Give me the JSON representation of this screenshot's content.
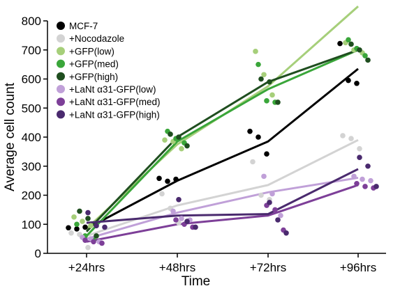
{
  "chart_data": {
    "type": "scatter",
    "title": "",
    "xlabel": "Time",
    "ylabel": "Average cell count",
    "categories": [
      "+24hrs",
      "+48hrs",
      "+72hrs",
      "+96hrs"
    ],
    "ylim": [
      0,
      800
    ],
    "yticks": [
      0,
      100,
      200,
      300,
      400,
      500,
      600,
      700,
      800
    ],
    "grid": false,
    "legend_position": "top-left",
    "series": [
      {
        "name": "MCF-7",
        "color": "#000000",
        "line": [
          85,
          250,
          385,
          635
        ],
        "points": [
          [
            1,
            88
          ],
          [
            1,
            84
          ],
          [
            1,
            90
          ],
          [
            2,
            258
          ],
          [
            2,
            248
          ],
          [
            2,
            255
          ],
          [
            3,
            420
          ],
          [
            3,
            400
          ],
          [
            3,
            342
          ],
          [
            4,
            722
          ],
          [
            4,
            595
          ],
          [
            4,
            585
          ]
        ]
      },
      {
        "name": "+Nocodazole",
        "color": "#d3d3d3",
        "line": [
          60,
          165,
          235,
          390
        ],
        "points": [
          [
            1,
            70
          ],
          [
            1,
            65
          ],
          [
            1,
            20
          ],
          [
            2,
            205
          ],
          [
            2,
            155
          ],
          [
            2,
            105
          ],
          [
            3,
            315
          ],
          [
            3,
            200
          ],
          [
            3,
            185
          ],
          [
            4,
            405
          ],
          [
            4,
            395
          ],
          [
            4,
            360
          ]
        ]
      },
      {
        "name": "+GFP(low)",
        "color": "#a6cf7a",
        "line": [
          85,
          375,
          575,
          850
        ],
        "points": [
          [
            1,
            125
          ],
          [
            1,
            110
          ],
          [
            1,
            95
          ],
          [
            2,
            390
          ],
          [
            2,
            385
          ],
          [
            2,
            360
          ],
          [
            3,
            695
          ],
          [
            3,
            615
          ],
          [
            3,
            545
          ],
          [
            4,
            725
          ],
          [
            4,
            700
          ],
          [
            4,
            690
          ]
        ]
      },
      {
        "name": "+GFP(med)",
        "color": "#3aa63a",
        "line": [
          60,
          385,
          565,
          700
        ],
        "points": [
          [
            1,
            100
          ],
          [
            1,
            60
          ],
          [
            1,
            45
          ],
          [
            2,
            420
          ],
          [
            2,
            395
          ],
          [
            2,
            380
          ],
          [
            3,
            650
          ],
          [
            3,
            525
          ],
          [
            3,
            520
          ],
          [
            4,
            735
          ],
          [
            4,
            705
          ],
          [
            4,
            680
          ]
        ]
      },
      {
        "name": "+GFP(high)",
        "color": "#1f4e1f",
        "line": [
          75,
          400,
          590,
          700
        ],
        "points": [
          [
            1,
            145
          ],
          [
            1,
            120
          ],
          [
            1,
            60
          ],
          [
            2,
            410
          ],
          [
            2,
            400
          ],
          [
            2,
            370
          ],
          [
            3,
            600
          ],
          [
            3,
            590
          ],
          [
            3,
            520
          ],
          [
            4,
            720
          ],
          [
            4,
            700
          ],
          [
            4,
            665
          ]
        ]
      },
      {
        "name": "+LaNt α31-GFP(low)",
        "color": "#c0a0d8",
        "line": [
          50,
          140,
          210,
          260
        ],
        "points": [
          [
            1,
            55
          ],
          [
            1,
            50
          ],
          [
            1,
            40
          ],
          [
            2,
            145
          ],
          [
            2,
            120
          ],
          [
            2,
            115
          ],
          [
            3,
            265
          ],
          [
            3,
            205
          ],
          [
            3,
            130
          ],
          [
            4,
            265
          ],
          [
            4,
            255
          ],
          [
            4,
            250
          ]
        ]
      },
      {
        "name": "+LaNt α31-GFP(med)",
        "color": "#7d3f98",
        "line": [
          40,
          100,
          130,
          235
        ],
        "points": [
          [
            1,
            45
          ],
          [
            1,
            40
          ],
          [
            1,
            35
          ],
          [
            2,
            115
          ],
          [
            2,
            100
          ],
          [
            2,
            90
          ],
          [
            3,
            165
          ],
          [
            3,
            150
          ],
          [
            3,
            80
          ],
          [
            4,
            240
          ],
          [
            4,
            230
          ],
          [
            4,
            225
          ]
        ]
      },
      {
        "name": "+LaNt α31-GFP(high)",
        "color": "#4a2a6e",
        "line": [
          105,
          130,
          135,
          290
        ],
        "points": [
          [
            1,
            140
          ],
          [
            1,
            95
          ],
          [
            1,
            90
          ],
          [
            2,
            185
          ],
          [
            2,
            110
          ],
          [
            2,
            90
          ],
          [
            3,
            175
          ],
          [
            3,
            115
          ],
          [
            3,
            70
          ],
          [
            4,
            330
          ],
          [
            4,
            300
          ],
          [
            4,
            230
          ]
        ]
      }
    ]
  }
}
